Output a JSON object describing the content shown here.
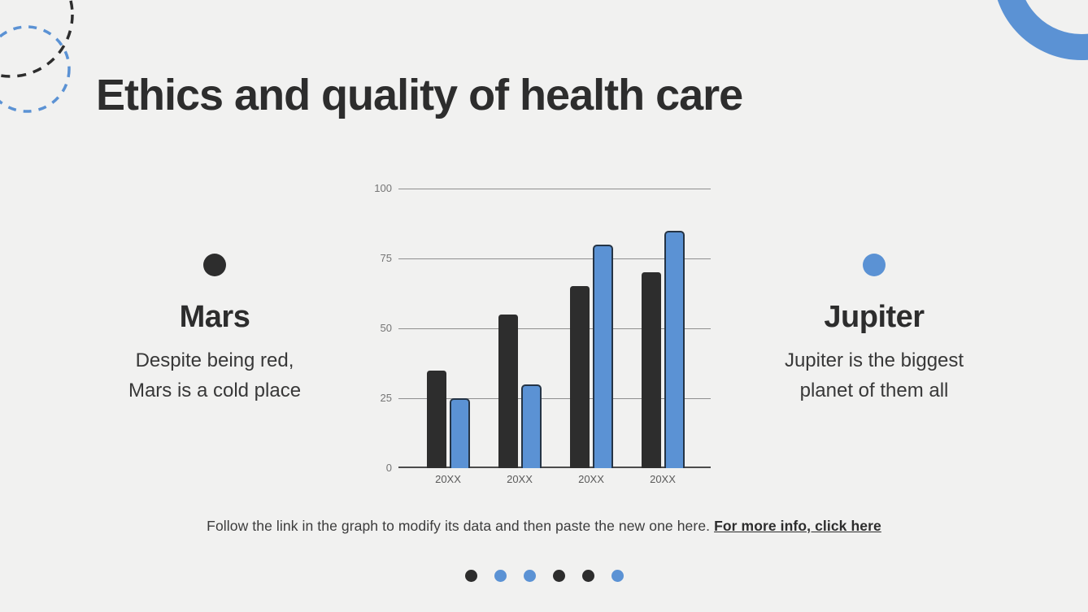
{
  "slide": {
    "title": "Ethics and quality of health care"
  },
  "panels": {
    "mars": {
      "name": "Mars",
      "description_lines": [
        "Despite being red,",
        "Mars is a cold place"
      ],
      "bullet_color": "#2d2d2d"
    },
    "jupiter": {
      "name": "Jupiter",
      "description_lines": [
        "Jupiter is the biggest",
        "planet of them all"
      ],
      "bullet_color": "#5b92d4"
    }
  },
  "chart_data": {
    "type": "bar",
    "categories": [
      "20XX",
      "20XX",
      "20XX",
      "20XX"
    ],
    "series": [
      {
        "name": "Mars",
        "color": "#2d2d2d",
        "values": [
          35,
          55,
          65,
          70
        ]
      },
      {
        "name": "Jupiter",
        "color": "#5b92d4",
        "values": [
          25,
          30,
          80,
          85
        ]
      }
    ],
    "title": "",
    "xlabel": "",
    "ylabel": "",
    "ylim": [
      0,
      100
    ],
    "yticks": [
      0,
      25,
      50,
      75,
      100
    ],
    "grid": true,
    "legend": "none"
  },
  "footer": {
    "note": "Follow the link in the graph to modify its data and then paste the new one here. ",
    "link_text": "For more info, click here"
  },
  "pagination": {
    "dots": [
      "#2d2d2d",
      "#5b92d4",
      "#5b92d4",
      "#2d2d2d",
      "#2d2d2d",
      "#5b92d4"
    ]
  },
  "colors": {
    "accent": "#5b92d4",
    "dark": "#2d2d2d",
    "background": "#f1f1f0"
  }
}
